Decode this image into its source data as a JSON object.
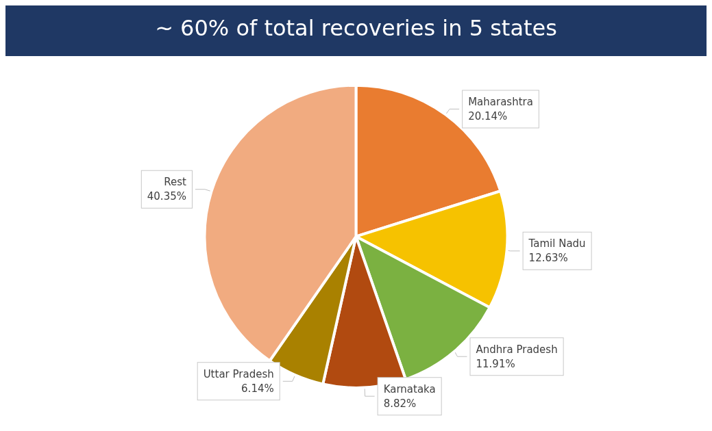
{
  "chart_data": {
    "type": "pie",
    "title": "~ 60% of total recoveries in 5 states",
    "categories": [
      "Maharashtra",
      "Tamil Nadu",
      "Andhra Pradesh",
      "Karnataka",
      "Uttar Pradesh",
      "Rest"
    ],
    "values": [
      20.14,
      12.63,
      11.91,
      8.82,
      6.14,
      40.35
    ],
    "value_labels": [
      "20.14%",
      "12.63%",
      "11.91%",
      "8.82%",
      "6.14%",
      "40.35%"
    ],
    "colors": [
      "#e97c30",
      "#f6c200",
      "#7bb141",
      "#b14a10",
      "#a98100",
      "#f1ab80"
    ],
    "legend": false
  }
}
